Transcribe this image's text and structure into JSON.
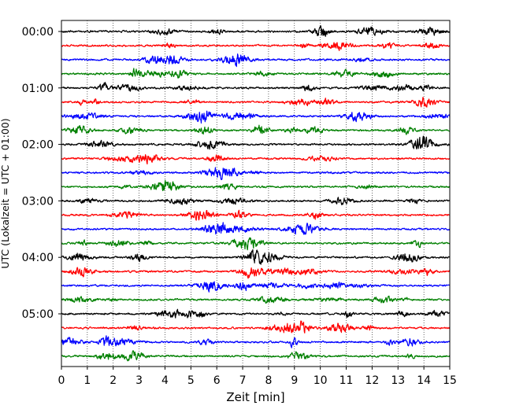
{
  "chart_data": {
    "type": "line",
    "title": "",
    "xlabel": "Zeit  [min]",
    "ylabel": "UTC (Lokalzeit = UTC + 01:00)",
    "xlim": [
      0,
      15
    ],
    "x_ticks": [
      "0",
      "1",
      "2",
      "3",
      "4",
      "5",
      "6",
      "7",
      "8",
      "9",
      "10",
      "11",
      "12",
      "13",
      "14",
      "15"
    ],
    "y_ticks": [
      "00:00",
      "01:00",
      "02:00",
      "03:00",
      "04:00",
      "05:00"
    ],
    "grid": "vertical dotted lines at each minute",
    "legend": "none",
    "rows_per_hour": 4,
    "row_interval_min": 15,
    "series_colors": [
      "#000000",
      "#ff0000",
      "#0000ff",
      "#008000"
    ],
    "series": [
      {
        "start": "00:00",
        "color": "#000000"
      },
      {
        "start": "00:15",
        "color": "#ff0000"
      },
      {
        "start": "00:30",
        "color": "#0000ff"
      },
      {
        "start": "00:45",
        "color": "#008000"
      },
      {
        "start": "01:00",
        "color": "#000000"
      },
      {
        "start": "01:15",
        "color": "#ff0000"
      },
      {
        "start": "01:30",
        "color": "#0000ff"
      },
      {
        "start": "01:45",
        "color": "#008000"
      },
      {
        "start": "02:00",
        "color": "#000000"
      },
      {
        "start": "02:15",
        "color": "#ff0000"
      },
      {
        "start": "02:30",
        "color": "#0000ff"
      },
      {
        "start": "02:45",
        "color": "#008000"
      },
      {
        "start": "03:00",
        "color": "#000000"
      },
      {
        "start": "03:15",
        "color": "#ff0000"
      },
      {
        "start": "03:30",
        "color": "#0000ff"
      },
      {
        "start": "03:45",
        "color": "#008000"
      },
      {
        "start": "04:00",
        "color": "#000000"
      },
      {
        "start": "04:15",
        "color": "#ff0000"
      },
      {
        "start": "04:30",
        "color": "#0000ff"
      },
      {
        "start": "04:45",
        "color": "#008000"
      },
      {
        "start": "05:00",
        "color": "#000000"
      },
      {
        "start": "05:15",
        "color": "#ff0000"
      },
      {
        "start": "05:30",
        "color": "#0000ff"
      },
      {
        "start": "05:45",
        "color": "#008000"
      }
    ]
  }
}
